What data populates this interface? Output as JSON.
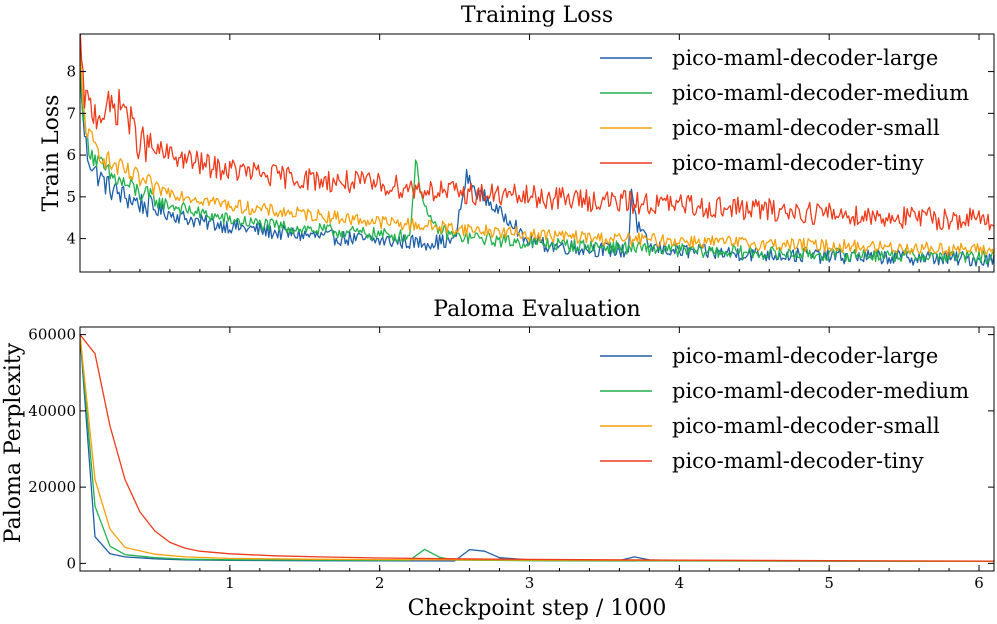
{
  "figure": {
    "xlabel": "Checkpoint step / 1000"
  },
  "chart_data": [
    {
      "type": "line",
      "title": "Training Loss",
      "xlabel": "",
      "ylabel": "Train Loss",
      "xlim": [
        0.0,
        6.1
      ],
      "ylim": [
        3.2,
        8.9
      ],
      "xticks": [
        1,
        2,
        3,
        4,
        5,
        6
      ],
      "yticks": [
        4,
        5,
        6,
        7,
        8
      ],
      "show_xtick_labels": false,
      "legend": "top-right",
      "grid": false,
      "series": [
        {
          "name": "pico-maml-decoder-large",
          "color": "#1f5fa8",
          "points": [
            [
              0,
              8.3
            ],
            [
              0.02,
              6.8
            ],
            [
              0.05,
              6.0
            ],
            [
              0.1,
              5.6
            ],
            [
              0.2,
              5.2
            ],
            [
              0.3,
              5.0
            ],
            [
              0.5,
              4.7
            ],
            [
              0.8,
              4.4
            ],
            [
              1.0,
              4.3
            ],
            [
              1.3,
              4.15
            ],
            [
              1.6,
              4.05
            ],
            [
              2.0,
              3.95
            ],
            [
              2.3,
              3.9
            ],
            [
              2.5,
              3.95
            ],
            [
              2.58,
              5.5
            ],
            [
              2.62,
              5.2
            ],
            [
              2.7,
              5.0
            ],
            [
              2.8,
              4.6
            ],
            [
              2.9,
              4.4
            ],
            [
              2.95,
              4.0
            ],
            [
              3.1,
              3.85
            ],
            [
              3.4,
              3.75
            ],
            [
              3.6,
              3.72
            ],
            [
              3.66,
              3.7
            ],
            [
              3.68,
              5.2
            ],
            [
              3.72,
              4.3
            ],
            [
              3.8,
              3.8
            ],
            [
              4.0,
              3.7
            ],
            [
              4.5,
              3.63
            ],
            [
              5.0,
              3.58
            ],
            [
              5.5,
              3.55
            ],
            [
              6.1,
              3.5
            ]
          ],
          "noise": 0.18
        },
        {
          "name": "pico-maml-decoder-medium",
          "color": "#22b14c",
          "points": [
            [
              0,
              8.6
            ],
            [
              0.02,
              7.0
            ],
            [
              0.05,
              6.3
            ],
            [
              0.1,
              5.9
            ],
            [
              0.2,
              5.5
            ],
            [
              0.3,
              5.3
            ],
            [
              0.5,
              4.9
            ],
            [
              0.8,
              4.6
            ],
            [
              1.0,
              4.45
            ],
            [
              1.3,
              4.3
            ],
            [
              1.6,
              4.2
            ],
            [
              2.0,
              4.1
            ],
            [
              2.2,
              4.05
            ],
            [
              2.24,
              5.8
            ],
            [
              2.3,
              4.8
            ],
            [
              2.35,
              4.3
            ],
            [
              2.5,
              4.05
            ],
            [
              2.7,
              4.0
            ],
            [
              2.8,
              3.95
            ],
            [
              3.0,
              3.9
            ],
            [
              3.5,
              3.8
            ],
            [
              4.0,
              3.72
            ],
            [
              4.5,
              3.66
            ],
            [
              5.0,
              3.62
            ],
            [
              5.5,
              3.6
            ],
            [
              6.1,
              3.55
            ]
          ],
          "noise": 0.16
        },
        {
          "name": "pico-maml-decoder-small",
          "color": "#f5a00a",
          "points": [
            [
              0,
              8.4
            ],
            [
              0.02,
              7.2
            ],
            [
              0.05,
              6.5
            ],
            [
              0.1,
              6.2
            ],
            [
              0.2,
              5.8
            ],
            [
              0.3,
              5.6
            ],
            [
              0.5,
              5.2
            ],
            [
              0.8,
              4.95
            ],
            [
              1.0,
              4.8
            ],
            [
              1.3,
              4.65
            ],
            [
              1.6,
              4.55
            ],
            [
              2.0,
              4.4
            ],
            [
              2.5,
              4.25
            ],
            [
              3.0,
              4.1
            ],
            [
              3.5,
              4.0
            ],
            [
              4.0,
              3.95
            ],
            [
              4.5,
              3.88
            ],
            [
              5.0,
              3.83
            ],
            [
              5.5,
              3.78
            ],
            [
              6.1,
              3.72
            ]
          ],
          "noise": 0.16
        },
        {
          "name": "pico-maml-decoder-tiny",
          "color": "#ee3b1b",
          "points": [
            [
              0,
              8.8
            ],
            [
              0.02,
              7.6
            ],
            [
              0.05,
              7.2
            ],
            [
              0.1,
              7.0
            ],
            [
              0.2,
              7.1
            ],
            [
              0.3,
              7.2
            ],
            [
              0.35,
              6.6
            ],
            [
              0.4,
              6.3
            ],
            [
              0.5,
              6.1
            ],
            [
              0.7,
              5.9
            ],
            [
              0.9,
              5.7
            ],
            [
              1.0,
              5.65
            ],
            [
              1.3,
              5.5
            ],
            [
              1.6,
              5.4
            ],
            [
              2.0,
              5.3
            ],
            [
              2.5,
              5.1
            ],
            [
              3.0,
              5.0
            ],
            [
              3.5,
              4.9
            ],
            [
              4.0,
              4.8
            ],
            [
              4.5,
              4.7
            ],
            [
              5.0,
              4.6
            ],
            [
              5.5,
              4.5
            ],
            [
              6.1,
              4.45
            ]
          ],
          "noise": 0.28
        }
      ]
    },
    {
      "type": "line",
      "title": "Paloma Evaluation",
      "xlabel": "Checkpoint step / 1000",
      "ylabel": "Paloma Perplexity",
      "xlim": [
        0.0,
        6.1
      ],
      "ylim": [
        -2000,
        62000
      ],
      "xticks": [
        1,
        2,
        3,
        4,
        5,
        6
      ],
      "yticks": [
        0,
        20000,
        40000,
        60000
      ],
      "show_xtick_labels": true,
      "legend": "top-right",
      "grid": false,
      "series": [
        {
          "name": "pico-maml-decoder-large",
          "color": "#1f5fa8",
          "points": [
            [
              0,
              60000
            ],
            [
              0.1,
              7000
            ],
            [
              0.2,
              2500
            ],
            [
              0.3,
              1700
            ],
            [
              0.5,
              1200
            ],
            [
              0.7,
              900
            ],
            [
              1.0,
              800
            ],
            [
              1.5,
              700
            ],
            [
              2.0,
              650
            ],
            [
              2.5,
              620
            ],
            [
              2.6,
              3600
            ],
            [
              2.7,
              3200
            ],
            [
              2.8,
              1500
            ],
            [
              3.0,
              900
            ],
            [
              3.5,
              800
            ],
            [
              3.6,
              750
            ],
            [
              3.7,
              1700
            ],
            [
              3.8,
              900
            ],
            [
              4.0,
              700
            ],
            [
              5.0,
              600
            ],
            [
              6.1,
              550
            ]
          ],
          "noise": 0
        },
        {
          "name": "pico-maml-decoder-medium",
          "color": "#22b14c",
          "points": [
            [
              0,
              60000
            ],
            [
              0.1,
              15000
            ],
            [
              0.2,
              4500
            ],
            [
              0.3,
              2300
            ],
            [
              0.5,
              1500
            ],
            [
              0.7,
              1100
            ],
            [
              1.0,
              950
            ],
            [
              1.5,
              850
            ],
            [
              2.0,
              800
            ],
            [
              2.2,
              780
            ],
            [
              2.3,
              3700
            ],
            [
              2.4,
              1600
            ],
            [
              2.5,
              850
            ],
            [
              3.0,
              700
            ],
            [
              4.0,
              620
            ],
            [
              5.0,
              580
            ],
            [
              6.1,
              550
            ]
          ],
          "noise": 0
        },
        {
          "name": "pico-maml-decoder-small",
          "color": "#f5a00a",
          "points": [
            [
              0,
              60000
            ],
            [
              0.1,
              22000
            ],
            [
              0.2,
              9000
            ],
            [
              0.3,
              4200
            ],
            [
              0.5,
              2400
            ],
            [
              0.7,
              1700
            ],
            [
              1.0,
              1300
            ],
            [
              1.5,
              1100
            ],
            [
              2.0,
              1000
            ],
            [
              2.5,
              900
            ],
            [
              3.0,
              850
            ],
            [
              4.0,
              750
            ],
            [
              5.0,
              650
            ],
            [
              6.1,
              580
            ]
          ],
          "noise": 0
        },
        {
          "name": "pico-maml-decoder-tiny",
          "color": "#ee3b1b",
          "points": [
            [
              0,
              60000
            ],
            [
              0.1,
              55000
            ],
            [
              0.2,
              36000
            ],
            [
              0.3,
              22000
            ],
            [
              0.4,
              13500
            ],
            [
              0.5,
              8500
            ],
            [
              0.6,
              5500
            ],
            [
              0.7,
              4000
            ],
            [
              0.8,
              3200
            ],
            [
              1.0,
              2500
            ],
            [
              1.3,
              2000
            ],
            [
              1.6,
              1700
            ],
            [
              2.0,
              1400
            ],
            [
              2.5,
              1200
            ],
            [
              3.0,
              1050
            ],
            [
              3.5,
              950
            ],
            [
              4.0,
              850
            ],
            [
              5.0,
              700
            ],
            [
              6.1,
              600
            ]
          ],
          "noise": 0
        }
      ]
    }
  ]
}
